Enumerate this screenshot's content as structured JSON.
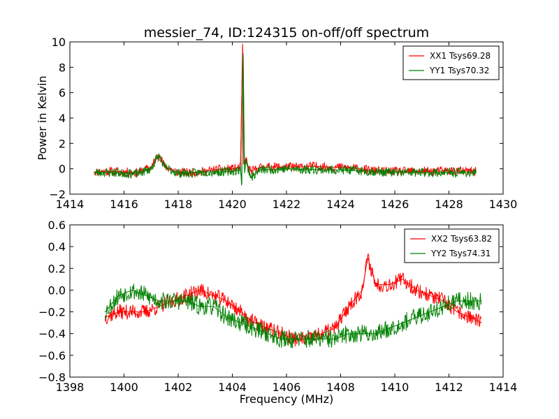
{
  "chart_data": [
    {
      "type": "line",
      "title": "messier_74, ID:124315 on-off/off spectrum",
      "xlabel": "",
      "ylabel": "Power in Kelvin",
      "xlim": [
        1414,
        1430
      ],
      "ylim": [
        -2,
        10
      ],
      "xticks": [
        1414,
        1416,
        1418,
        1420,
        1422,
        1424,
        1426,
        1428,
        1430
      ],
      "yticks": [
        -2,
        0,
        2,
        4,
        6,
        8,
        10
      ],
      "xtick_labels": [
        "1414",
        "1416",
        "1418",
        "1420",
        "1422",
        "1424",
        "1426",
        "1428",
        "1430"
      ],
      "ytick_labels": [
        "−2",
        "0",
        "2",
        "4",
        "6",
        "8",
        "10"
      ],
      "legend_position": "top-right",
      "grid": false,
      "series": [
        {
          "name": "XX1 Tsys69.28",
          "color": "#ff0000",
          "x": [
            1414.9,
            1415.5,
            1416.0,
            1416.5,
            1417.0,
            1417.2,
            1417.3,
            1417.5,
            1418.0,
            1418.5,
            1419.0,
            1419.5,
            1420.0,
            1420.3,
            1420.38,
            1420.42,
            1420.5,
            1420.6,
            1420.7,
            1421.0,
            1421.5,
            1422.0,
            1422.5,
            1423.0,
            1423.5,
            1424.0,
            1424.5,
            1425.0,
            1425.5,
            1426.0,
            1426.5,
            1427.0,
            1427.5,
            1428.0,
            1428.5,
            1429.0
          ],
          "values": [
            -0.25,
            -0.2,
            -0.25,
            -0.3,
            0.1,
            0.9,
            1.1,
            0.2,
            -0.3,
            -0.3,
            -0.2,
            -0.05,
            0.0,
            0.1,
            9.6,
            0.4,
            0.8,
            0.0,
            -0.2,
            0.1,
            0.15,
            0.15,
            0.15,
            0.2,
            0.15,
            0.1,
            0.05,
            -0.1,
            -0.2,
            -0.2,
            -0.2,
            -0.2,
            -0.2,
            -0.15,
            -0.2,
            -0.2
          ]
        },
        {
          "name": "YY1 Tsys70.32",
          "color": "#008000",
          "x": [
            1414.9,
            1415.5,
            1416.0,
            1416.5,
            1417.0,
            1417.2,
            1417.3,
            1417.5,
            1418.0,
            1418.5,
            1419.0,
            1419.5,
            1420.0,
            1420.3,
            1420.35,
            1420.4,
            1420.45,
            1420.5,
            1420.6,
            1420.7,
            1421.0,
            1421.5,
            1422.0,
            1422.5,
            1423.0,
            1423.5,
            1424.0,
            1424.5,
            1425.0,
            1425.5,
            1426.0,
            1426.5,
            1427.0,
            1427.5,
            1428.0,
            1428.5,
            1429.0
          ],
          "values": [
            -0.3,
            -0.3,
            -0.35,
            -0.4,
            0.0,
            0.8,
            1.0,
            0.1,
            -0.35,
            -0.35,
            -0.25,
            -0.25,
            -0.2,
            -0.1,
            -1.2,
            9.0,
            -0.3,
            0.6,
            -0.1,
            -0.7,
            -0.1,
            -0.05,
            0.0,
            -0.05,
            -0.05,
            -0.1,
            -0.1,
            -0.15,
            -0.2,
            -0.25,
            -0.3,
            -0.3,
            -0.3,
            -0.3,
            -0.3,
            -0.3,
            -0.35
          ]
        }
      ]
    },
    {
      "type": "line",
      "title": "",
      "xlabel": "Frequency (MHz)",
      "ylabel": "",
      "xlim": [
        1398,
        1414
      ],
      "ylim": [
        -0.8,
        0.6
      ],
      "xticks": [
        1398,
        1400,
        1402,
        1404,
        1406,
        1408,
        1410,
        1412,
        1414
      ],
      "yticks": [
        -0.8,
        -0.6,
        -0.4,
        -0.2,
        0.0,
        0.2,
        0.4,
        0.6
      ],
      "xtick_labels": [
        "1398",
        "1400",
        "1402",
        "1404",
        "1406",
        "1408",
        "1410",
        "1412",
        "1414"
      ],
      "ytick_labels": [
        "−0.8",
        "−0.6",
        "−0.4",
        "−0.2",
        "0.0",
        "0.2",
        "0.4",
        "0.6"
      ],
      "legend_position": "top-right",
      "grid": false,
      "series": [
        {
          "name": "XX2 Tsys63.82",
          "color": "#ff0000",
          "x": [
            1399.3,
            1399.8,
            1400.3,
            1400.8,
            1401.3,
            1401.8,
            1402.3,
            1402.8,
            1403.3,
            1403.8,
            1404.3,
            1404.8,
            1405.3,
            1405.8,
            1406.3,
            1406.8,
            1407.3,
            1407.8,
            1408.3,
            1408.8,
            1409.0,
            1409.3,
            1409.8,
            1410.3,
            1410.8,
            1411.3,
            1411.8,
            1412.3,
            1412.8,
            1413.2
          ],
          "values": [
            -0.25,
            -0.2,
            -0.2,
            -0.2,
            -0.15,
            -0.1,
            -0.05,
            0.0,
            -0.05,
            -0.1,
            -0.2,
            -0.3,
            -0.35,
            -0.4,
            -0.45,
            -0.45,
            -0.4,
            -0.35,
            -0.15,
            0.0,
            0.3,
            0.05,
            0.05,
            0.1,
            0.0,
            -0.05,
            -0.1,
            -0.2,
            -0.25,
            -0.3
          ]
        },
        {
          "name": "YY2 Tsys74.31",
          "color": "#008000",
          "x": [
            1399.3,
            1399.8,
            1400.3,
            1400.8,
            1401.3,
            1401.8,
            1402.3,
            1402.8,
            1403.3,
            1403.8,
            1404.3,
            1404.8,
            1405.3,
            1405.8,
            1406.3,
            1406.8,
            1407.3,
            1407.8,
            1408.3,
            1408.8,
            1409.3,
            1409.8,
            1410.3,
            1410.8,
            1411.3,
            1411.8,
            1412.3,
            1412.8,
            1413.2
          ],
          "values": [
            -0.2,
            -0.05,
            0.0,
            -0.05,
            -0.1,
            -0.1,
            -0.1,
            -0.15,
            -0.15,
            -0.25,
            -0.3,
            -0.35,
            -0.4,
            -0.45,
            -0.45,
            -0.45,
            -0.45,
            -0.45,
            -0.4,
            -0.4,
            -0.4,
            -0.35,
            -0.3,
            -0.25,
            -0.2,
            -0.15,
            -0.1,
            -0.1,
            -0.1
          ]
        }
      ]
    }
  ]
}
